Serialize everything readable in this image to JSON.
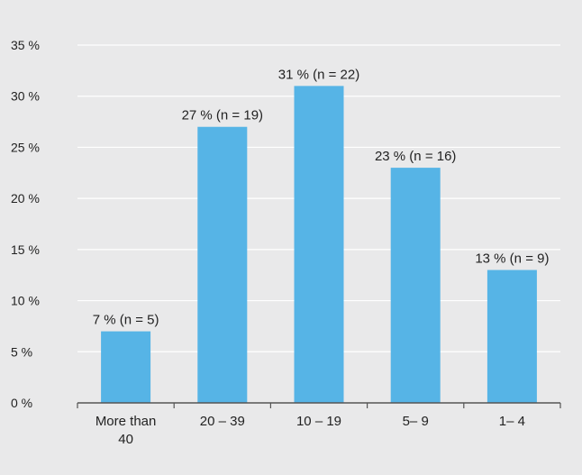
{
  "chart_data": {
    "type": "bar",
    "title": "",
    "xlabel": "",
    "ylabel": "",
    "categories": [
      [
        "More than",
        "40"
      ],
      [
        "20 – 39"
      ],
      [
        "10 – 19"
      ],
      [
        "5– 9"
      ],
      [
        "1– 4"
      ]
    ],
    "values": [
      7,
      27,
      31,
      23,
      13
    ],
    "data_labels": [
      "7 % (n = 5)",
      "27 % (n = 19)",
      "31 % (n = 22)",
      "23 % (n = 16)",
      "13 % (n = 9)"
    ],
    "ylim": [
      0,
      35
    ],
    "yticks": [
      0,
      5,
      10,
      15,
      20,
      25,
      30,
      35
    ],
    "ytick_labels": [
      "0 %",
      "5 %",
      "10 %",
      "15 %",
      "20 %",
      "25 %",
      "30 %",
      "35 %"
    ],
    "grid": true,
    "legend": "none",
    "colors": {
      "bar": "#56b4e6",
      "grid": "#ffffff",
      "axis": "#555555",
      "background": "#e9e9ea"
    }
  }
}
